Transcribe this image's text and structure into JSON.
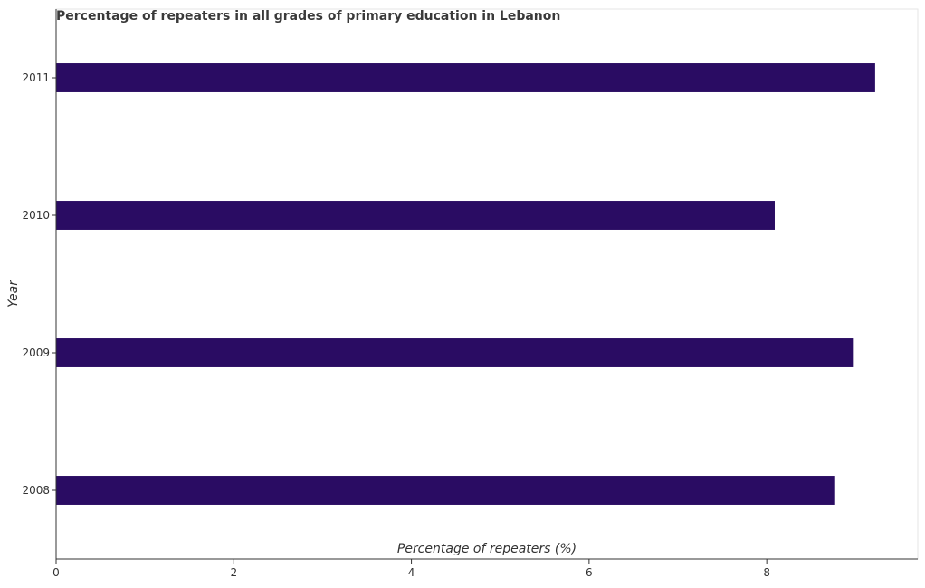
{
  "chart_data": {
    "type": "bar",
    "orientation": "horizontal",
    "title": "Percentage of repeaters in all grades of primary education in Lebanon",
    "xlabel": "Percentage of repeaters (%)",
    "ylabel": "Year",
    "categories": [
      "2008",
      "2009",
      "2010",
      "2011"
    ],
    "values": [
      8.77,
      8.98,
      8.09,
      9.22
    ],
    "xlim": [
      0,
      9.7
    ],
    "xticks": [
      0,
      2,
      4,
      6,
      8
    ],
    "xtick_labels": [
      "0",
      "2",
      "4",
      "6",
      "8"
    ],
    "bar_color": "#2a0c63",
    "grid": false,
    "legend": "none"
  }
}
